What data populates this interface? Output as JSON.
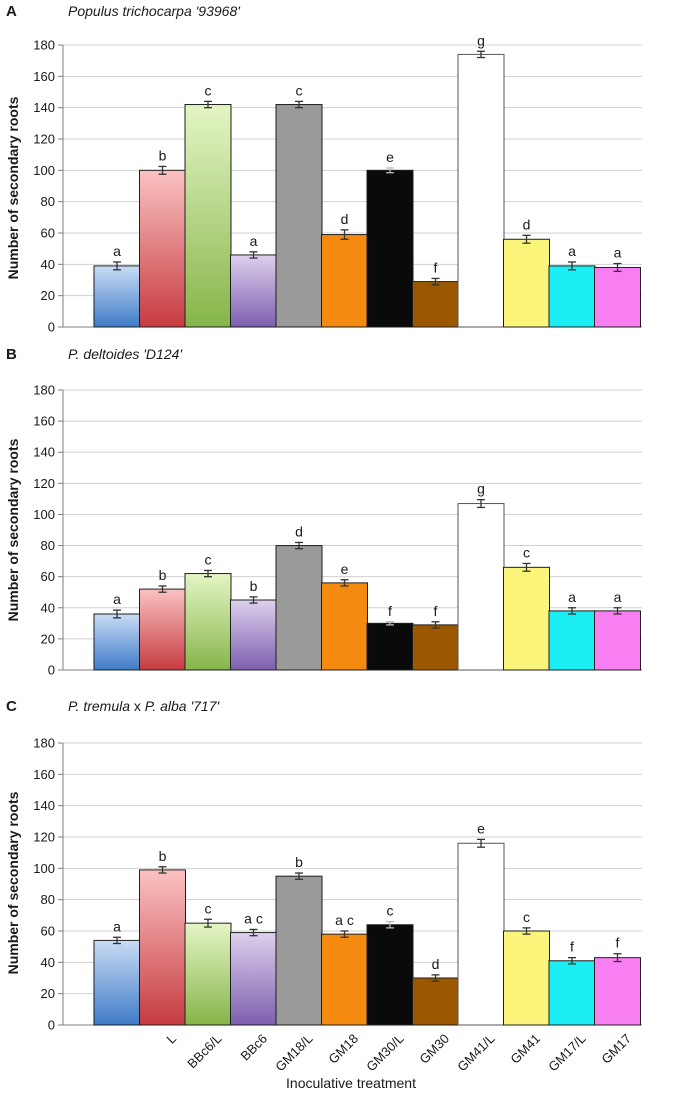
{
  "colors": {
    "bar_L": "#e0626a",
    "bar_BBc6L": "#aed373",
    "bar_BBc6": "#ac96ca",
    "bar_GM18L": "#9a9a9a",
    "bar_GM18": "#f58a10",
    "bar_GM30L": "#0a0a0a",
    "bar_GM30": "#9c5800",
    "bar_GM41L": "#ffffff",
    "bar_GM41": "#fbf57b",
    "bar_GM17L": "#1aeef4",
    "bar_GM17": "#f87ff2",
    "bar_control": "#6f9fd8",
    "grid": "#d0d0d0",
    "axis": "#7f7f7f"
  },
  "x_axis_label": "Inoculative treatment",
  "chart_data": [
    {
      "type": "bar",
      "panel": "A",
      "title": "Populus trichocarpa '93968'",
      "ylabel": "Number of secondary roots",
      "ylim": [
        0,
        180
      ],
      "yticks": [
        "0",
        "20",
        "40",
        "60",
        "80",
        "100",
        "120",
        "140",
        "160",
        "180"
      ],
      "grid": true,
      "categories": [
        "",
        "L",
        "BBc6/L",
        "BBc6",
        "GM18/L",
        "GM18",
        "GM30/L",
        "GM30",
        "GM41/L",
        "GM41",
        "GM17/L",
        "GM17"
      ],
      "values": [
        39,
        100,
        142,
        46,
        142,
        59,
        100,
        29,
        174,
        56,
        39,
        38
      ],
      "errors": [
        2.5,
        2.5,
        2,
        2,
        2,
        3,
        1.5,
        2,
        2,
        2.5,
        2.5,
        2.5
      ],
      "letters": [
        "a",
        "b",
        "c",
        "a",
        "c",
        "d",
        "e",
        "f",
        "g",
        "d",
        "a",
        "a"
      ]
    },
    {
      "type": "bar",
      "panel": "B",
      "title": "P. deltoides 'D124'",
      "ylabel": "Number of secondary roots",
      "ylim": [
        0,
        180
      ],
      "yticks": [
        "0",
        "20",
        "40",
        "60",
        "80",
        "100",
        "120",
        "140",
        "160",
        "180"
      ],
      "grid": true,
      "categories": [
        "",
        "L",
        "BBc6/L",
        "BBc6",
        "GM18/L",
        "GM18",
        "GM30/L",
        "GM30",
        "GM41/L",
        "GM41",
        "GM17/L",
        "GM17"
      ],
      "values": [
        36,
        52,
        62,
        45,
        80,
        56,
        30,
        29,
        107,
        66,
        38,
        38
      ],
      "errors": [
        2.5,
        2,
        2,
        2,
        2,
        2,
        1,
        2,
        2.5,
        2.5,
        2,
        2
      ],
      "letters": [
        "a",
        "b",
        "c",
        "b",
        "d",
        "e",
        "f",
        "f",
        "g",
        "c",
        "a",
        "a"
      ]
    },
    {
      "type": "bar",
      "panel": "C",
      "title_parts": [
        "P. tremula",
        " x ",
        "P. alba",
        " '717'"
      ],
      "ylabel": "Number of secondary roots",
      "ylim": [
        0,
        180
      ],
      "yticks": [
        "0",
        "20",
        "40",
        "60",
        "80",
        "100",
        "120",
        "140",
        "160",
        "180"
      ],
      "grid": true,
      "categories": [
        "",
        "L",
        "BBc6/L",
        "BBc6",
        "GM18/L",
        "GM18",
        "GM30/L",
        "GM30",
        "GM41/L",
        "GM41",
        "GM17/L",
        "GM17"
      ],
      "values": [
        54,
        99,
        65,
        59,
        95,
        58,
        64,
        30,
        116,
        60,
        41,
        43
      ],
      "errors": [
        2,
        2,
        2.5,
        2,
        2,
        2,
        2,
        2,
        2.5,
        2,
        2,
        2.5
      ],
      "letters": [
        "a",
        "b",
        "c",
        "a c",
        "b",
        "a c",
        "c",
        "d",
        "e",
        "c",
        "f",
        "f"
      ]
    }
  ]
}
